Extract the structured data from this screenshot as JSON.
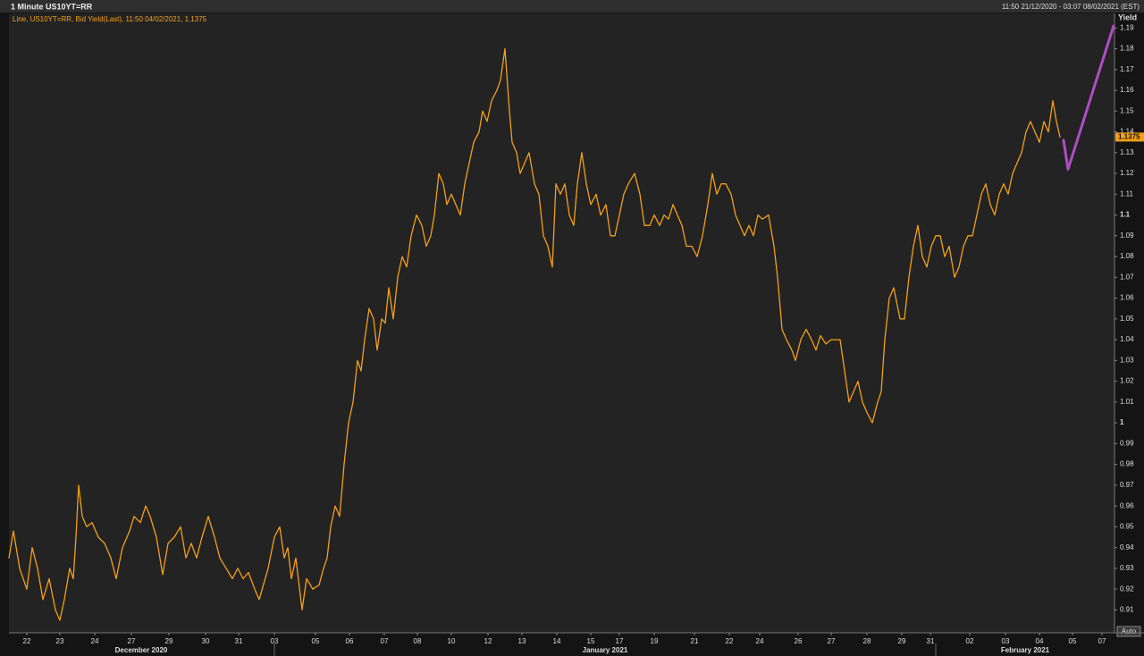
{
  "chart_data": {
    "type": "line",
    "title": "1 Minute US10YT=RR",
    "range_text": "11:50 21/12/2020 - 03:07 08/02/2021 (EST)",
    "series_caption": "Line, US10YT=RR, Bid Yield(Last), 11:50 04/02/2021, 1.1375",
    "y_label": "Yield",
    "last_value": 1.1375,
    "months": [
      "December 2020",
      "January 2021",
      "February 2021"
    ],
    "auto_button": "Auto",
    "xlim": [
      0,
      1237
    ],
    "ylim": [
      0.899,
      1.197
    ],
    "grid": false,
    "xticks": [
      {
        "value": 20,
        "label": "22"
      },
      {
        "value": 57,
        "label": "23"
      },
      {
        "value": 96,
        "label": "24"
      },
      {
        "value": 137,
        "label": "27"
      },
      {
        "value": 179,
        "label": "29"
      },
      {
        "value": 220,
        "label": "30"
      },
      {
        "value": 257,
        "label": "31"
      },
      {
        "value": 297,
        "label": "03"
      },
      {
        "value": 343,
        "label": "05"
      },
      {
        "value": 381,
        "label": "06"
      },
      {
        "value": 420,
        "label": "07"
      },
      {
        "value": 457,
        "label": "08"
      },
      {
        "value": 495,
        "label": "10"
      },
      {
        "value": 536,
        "label": "12"
      },
      {
        "value": 574,
        "label": "13"
      },
      {
        "value": 613,
        "label": "14"
      },
      {
        "value": 651,
        "label": "15"
      },
      {
        "value": 683,
        "label": "17"
      },
      {
        "value": 722,
        "label": "19"
      },
      {
        "value": 767,
        "label": "21"
      },
      {
        "value": 806,
        "label": "22"
      },
      {
        "value": 840,
        "label": "24"
      },
      {
        "value": 883,
        "label": "26"
      },
      {
        "value": 920,
        "label": "27"
      },
      {
        "value": 960,
        "label": "28"
      },
      {
        "value": 999,
        "label": "29"
      },
      {
        "value": 1031,
        "label": "31"
      },
      {
        "value": 1075,
        "label": "02"
      },
      {
        "value": 1115,
        "label": "03"
      },
      {
        "value": 1153,
        "label": "04"
      },
      {
        "value": 1190,
        "label": "05"
      },
      {
        "value": 1223,
        "label": "07"
      }
    ],
    "yticks": [
      0.91,
      0.92,
      0.93,
      0.94,
      0.95,
      0.96,
      0.97,
      0.98,
      0.99,
      1,
      1.01,
      1.02,
      1.03,
      1.04,
      1.05,
      1.06,
      1.07,
      1.08,
      1.09,
      1.1,
      1.11,
      1.12,
      1.13,
      1.14,
      1.15,
      1.16,
      1.17,
      1.18,
      1.19
    ],
    "series": [
      {
        "color": "#f5a01a",
        "x": [
          0,
          5,
          12,
          20,
          26,
          32,
          38,
          45,
          52,
          57,
          62,
          68,
          72,
          75,
          78,
          82,
          87,
          93,
          100,
          107,
          114,
          120,
          127,
          135,
          140,
          147,
          153,
          158,
          165,
          172,
          178,
          185,
          192,
          198,
          204,
          210,
          216,
          223,
          230,
          236,
          243,
          250,
          256,
          262,
          268,
          275,
          280,
          290,
          297,
          303,
          308,
          312,
          316,
          321,
          328,
          333,
          340,
          347,
          352,
          356,
          360,
          365,
          370,
          375,
          380,
          385,
          390,
          394,
          398,
          403,
          408,
          412,
          417,
          421,
          425,
          430,
          435,
          440,
          445,
          450,
          456,
          462,
          467,
          472,
          476,
          481,
          486,
          490,
          495,
          500,
          505,
          510,
          515,
          520,
          526,
          530,
          535,
          540,
          546,
          550,
          555,
          560,
          563,
          568,
          572,
          577,
          582,
          588,
          593,
          598,
          603,
          608,
          612,
          617,
          622,
          627,
          632,
          636,
          641,
          646,
          651,
          657,
          662,
          668,
          673,
          678,
          683,
          688,
          693,
          700,
          706,
          711,
          717,
          722,
          728,
          733,
          738,
          743,
          748,
          753,
          758,
          764,
          770,
          776,
          782,
          787,
          792,
          797,
          802,
          808,
          813,
          818,
          823,
          828,
          833,
          838,
          843,
          850,
          856,
          860,
          865,
          870,
          876,
          880,
          886,
          892,
          898,
          903,
          908,
          914,
          920,
          925,
          930,
          935,
          940,
          945,
          950,
          955,
          960,
          966,
          972,
          976,
          980,
          985,
          990,
          997,
          1002,
          1007,
          1012,
          1017,
          1022,
          1027,
          1032,
          1037,
          1042,
          1047,
          1052,
          1058,
          1063,
          1068,
          1073,
          1078,
          1083,
          1088,
          1093,
          1098,
          1103,
          1108,
          1113,
          1118,
          1123,
          1128,
          1133,
          1138,
          1143,
          1148,
          1153,
          1158,
          1163,
          1168,
          1172,
          1176
        ],
        "values": [
          0.935,
          0.948,
          0.93,
          0.92,
          0.94,
          0.93,
          0.915,
          0.925,
          0.91,
          0.905,
          0.915,
          0.93,
          0.925,
          0.945,
          0.97,
          0.955,
          0.95,
          0.952,
          0.945,
          0.942,
          0.935,
          0.925,
          0.94,
          0.948,
          0.955,
          0.952,
          0.96,
          0.955,
          0.945,
          0.927,
          0.942,
          0.945,
          0.95,
          0.935,
          0.942,
          0.935,
          0.945,
          0.955,
          0.945,
          0.935,
          0.93,
          0.925,
          0.93,
          0.925,
          0.928,
          0.92,
          0.915,
          0.93,
          0.945,
          0.95,
          0.935,
          0.94,
          0.925,
          0.935,
          0.91,
          0.925,
          0.92,
          0.922,
          0.93,
          0.935,
          0.95,
          0.96,
          0.955,
          0.98,
          1.0,
          1.01,
          1.03,
          1.025,
          1.04,
          1.055,
          1.05,
          1.035,
          1.05,
          1.048,
          1.065,
          1.05,
          1.07,
          1.08,
          1.075,
          1.09,
          1.1,
          1.095,
          1.085,
          1.09,
          1.1,
          1.12,
          1.115,
          1.105,
          1.11,
          1.105,
          1.1,
          1.115,
          1.125,
          1.135,
          1.14,
          1.15,
          1.145,
          1.155,
          1.16,
          1.165,
          1.18,
          1.15,
          1.135,
          1.13,
          1.12,
          1.125,
          1.13,
          1.115,
          1.11,
          1.09,
          1.085,
          1.075,
          1.115,
          1.11,
          1.115,
          1.1,
          1.095,
          1.115,
          1.13,
          1.115,
          1.105,
          1.11,
          1.1,
          1.105,
          1.09,
          1.09,
          1.1,
          1.11,
          1.115,
          1.12,
          1.11,
          1.095,
          1.095,
          1.1,
          1.095,
          1.1,
          1.098,
          1.105,
          1.1,
          1.095,
          1.085,
          1.085,
          1.08,
          1.09,
          1.105,
          1.12,
          1.11,
          1.115,
          1.115,
          1.11,
          1.1,
          1.095,
          1.09,
          1.095,
          1.09,
          1.1,
          1.098,
          1.1,
          1.085,
          1.07,
          1.045,
          1.04,
          1.035,
          1.03,
          1.04,
          1.045,
          1.04,
          1.035,
          1.042,
          1.038,
          1.04,
          1.04,
          1.04,
          1.025,
          1.01,
          1.015,
          1.02,
          1.01,
          1.005,
          1.0,
          1.01,
          1.015,
          1.04,
          1.06,
          1.065,
          1.05,
          1.05,
          1.07,
          1.085,
          1.095,
          1.08,
          1.075,
          1.085,
          1.09,
          1.09,
          1.08,
          1.085,
          1.07,
          1.075,
          1.085,
          1.09,
          1.09,
          1.1,
          1.11,
          1.115,
          1.105,
          1.1,
          1.11,
          1.115,
          1.11,
          1.12,
          1.125,
          1.13,
          1.14,
          1.145,
          1.14,
          1.135,
          1.145,
          1.14,
          1.155,
          1.145,
          1.1375
        ]
      },
      {
        "color": "#b04cc4",
        "x": [
          1180,
          1185,
          1236
        ],
        "values": [
          1.136,
          1.122,
          1.191
        ]
      }
    ]
  }
}
